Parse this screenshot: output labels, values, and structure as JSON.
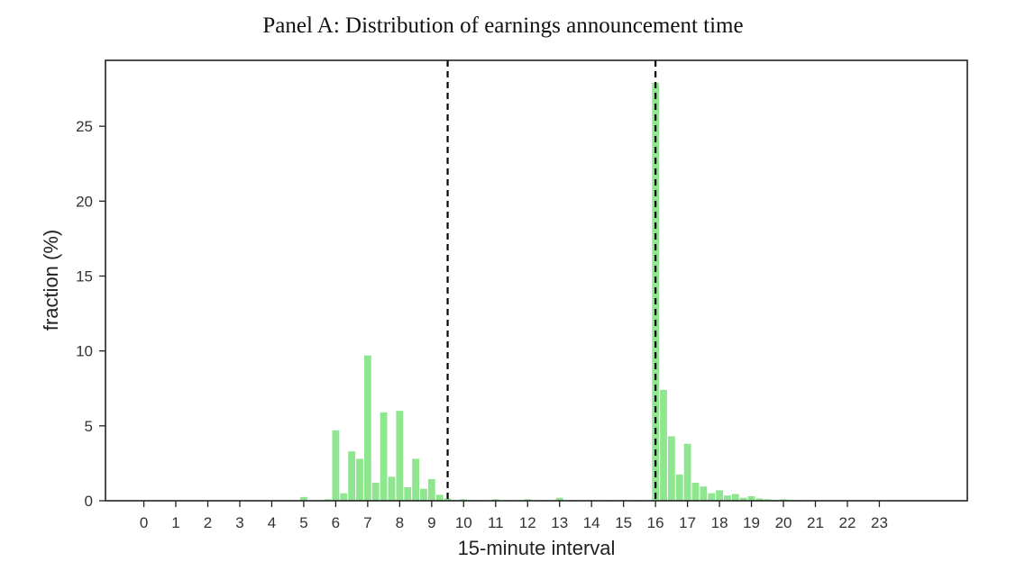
{
  "chart_data": {
    "type": "bar",
    "title": "Panel A: Distribution of earnings announcement time",
    "xlabel": "15-minute interval",
    "ylabel": "fraction (%)",
    "xlim": [
      -1.2,
      25.75
    ],
    "ylim": [
      0,
      29.4
    ],
    "x_ticks": [
      0,
      1,
      2,
      3,
      4,
      5,
      6,
      7,
      8,
      9,
      10,
      11,
      12,
      13,
      14,
      15,
      16,
      17,
      18,
      19,
      20,
      21,
      22,
      23
    ],
    "y_ticks": [
      0,
      5,
      10,
      15,
      20,
      25
    ],
    "bar_width": 0.22,
    "x": [
      5.0,
      5.75,
      6.0,
      6.25,
      6.5,
      6.75,
      7.0,
      7.25,
      7.5,
      7.75,
      8.0,
      8.25,
      8.5,
      8.75,
      9.0,
      9.25,
      9.5,
      9.75,
      10.0,
      10.25,
      10.5,
      11.0,
      11.5,
      12.0,
      12.5,
      13.0,
      13.5,
      14.0,
      14.5,
      15.0,
      15.5,
      16.0,
      16.25,
      16.5,
      16.75,
      17.0,
      17.25,
      17.5,
      17.75,
      18.0,
      18.25,
      18.5,
      18.75,
      19.0,
      19.25,
      19.5,
      19.75,
      20.0,
      20.25,
      20.5,
      20.75,
      21.0
    ],
    "values": [
      0.25,
      0.1,
      4.7,
      0.5,
      3.3,
      2.8,
      9.7,
      1.2,
      5.9,
      1.6,
      6.0,
      0.9,
      2.8,
      0.8,
      1.45,
      0.4,
      0.15,
      0.05,
      0.1,
      0.05,
      0.05,
      0.1,
      0.05,
      0.1,
      0.05,
      0.2,
      0.05,
      0.05,
      0.05,
      0.05,
      0.05,
      27.9,
      7.4,
      4.3,
      1.75,
      3.8,
      1.2,
      0.95,
      0.5,
      0.7,
      0.35,
      0.45,
      0.2,
      0.3,
      0.15,
      0.1,
      0.05,
      0.1,
      0.05,
      0.05,
      0.03,
      0.03
    ],
    "vlines": [
      9.5,
      16.0
    ],
    "vline_style": "dashed black",
    "bar_color": "#8ee68e",
    "grid": false,
    "legend": "none"
  }
}
